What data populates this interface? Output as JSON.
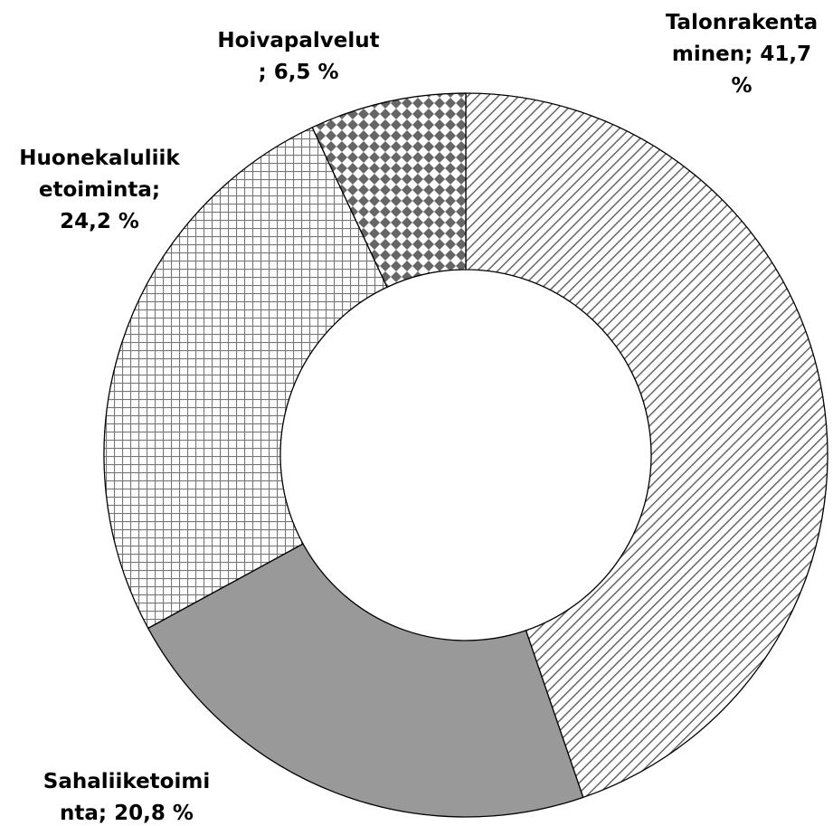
{
  "chart_data": {
    "type": "donut",
    "labels": [
      "Talonrakentaminen; 41,7 %",
      "Sahaliiketoiminta; 20,8 %",
      "Huonekaluliiketoiminta; 24,2 %",
      "Hoivapalvelut; 6,5 %"
    ],
    "values": [
      41.7,
      20.8,
      24.2,
      6.5
    ],
    "patterns": [
      "diagonal-hatch",
      "solid",
      "grid",
      "diamond-check"
    ],
    "colors": [
      "#555555",
      "#999999",
      "#777777",
      "#666666"
    ]
  }
}
